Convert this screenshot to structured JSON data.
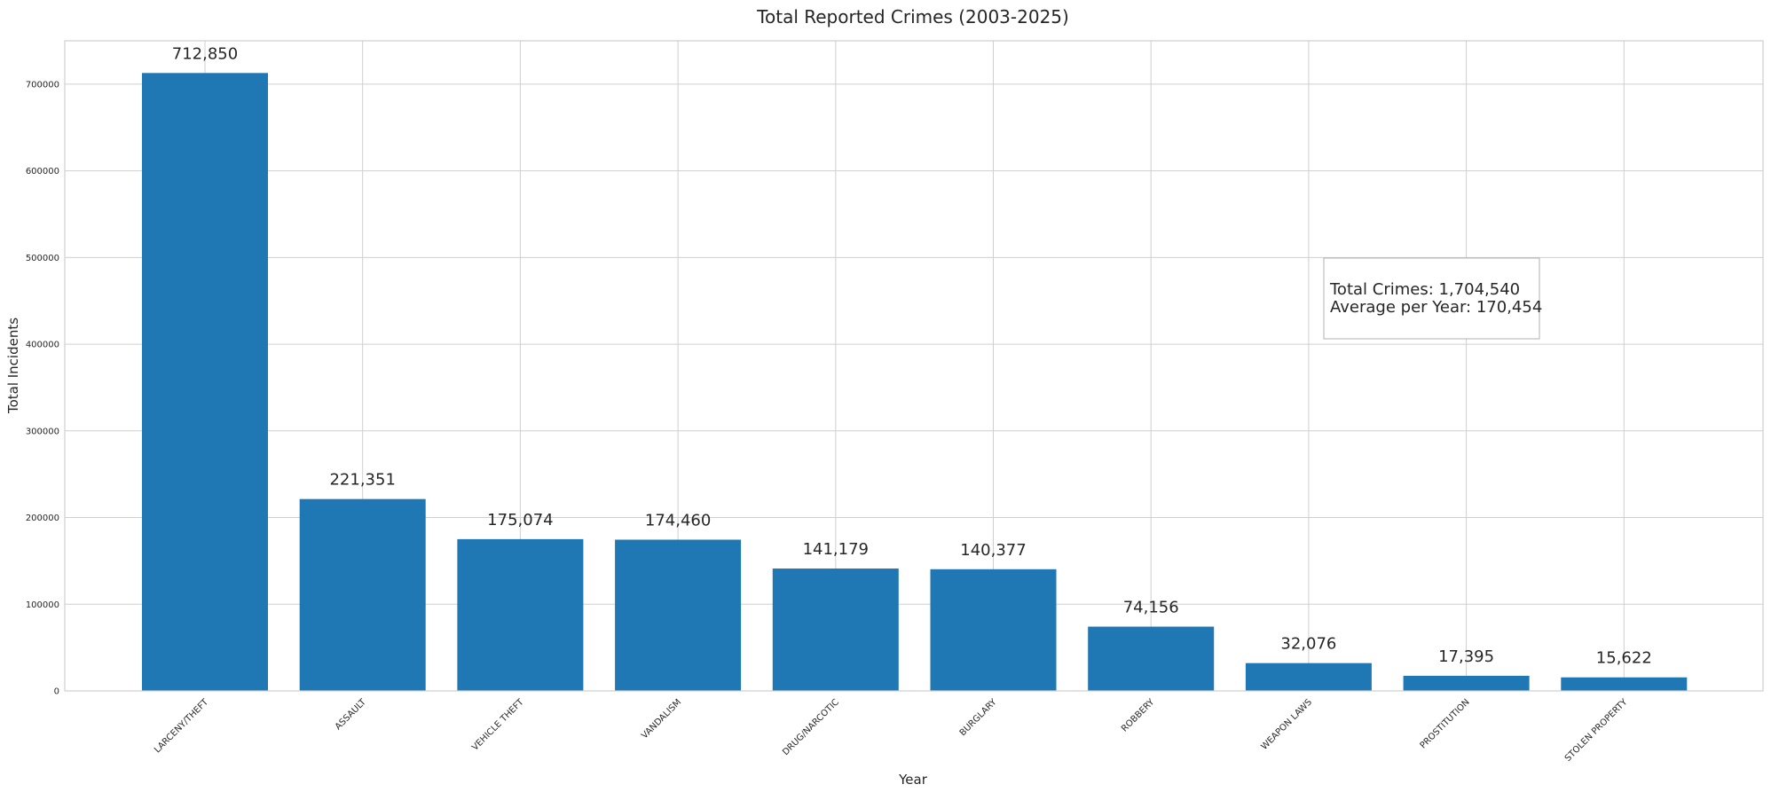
{
  "chart_data": {
    "type": "bar",
    "title": "Total Reported Crimes (2003-2025)",
    "xlabel": "Year",
    "ylabel": "Total Incidents",
    "ylim": [
      0,
      750000
    ],
    "yticks": [
      0,
      100000,
      200000,
      300000,
      400000,
      500000,
      600000,
      700000
    ],
    "grid": true,
    "categories": [
      "LARCENY/THEFT",
      "ASSAULT",
      "VEHICLE THEFT",
      "VANDALISM",
      "DRUG/NARCOTIC",
      "BURGLARY",
      "ROBBERY",
      "WEAPON LAWS",
      "PROSTITUTION",
      "STOLEN PROPERTY"
    ],
    "values": [
      712850,
      221351,
      175074,
      174460,
      141179,
      140377,
      74156,
      32076,
      17395,
      15622
    ],
    "value_labels": [
      "712,850",
      "221,351",
      "175,074",
      "174,460",
      "141,179",
      "140,377",
      "74,156",
      "32,076",
      "17,395",
      "15,622"
    ],
    "bar_color": "#1f77b4",
    "annotation": {
      "line1": "Total Crimes: 1,704,540",
      "line2": "Average per Year: 170,454"
    }
  }
}
